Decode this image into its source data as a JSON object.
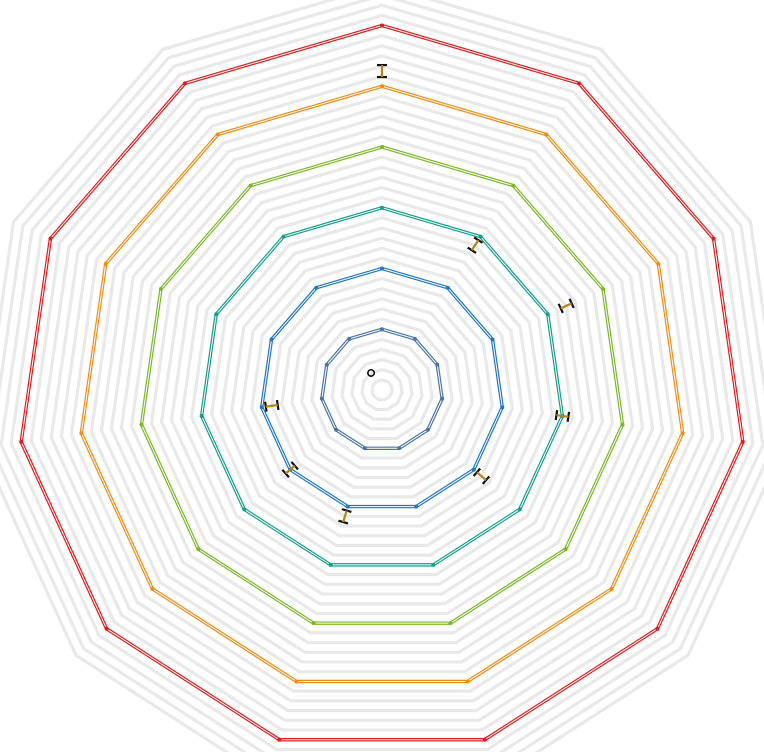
{
  "chart_data": {
    "type": "radar",
    "title": "",
    "axes_count": 11,
    "grid": true,
    "grid_levels": 40,
    "radial_range": [
      0,
      40
    ],
    "series": [
      {
        "color": "#4a76a8",
        "value": 6,
        "marker": "O",
        "marker_color": "#111111"
      },
      {
        "color": "#1f78c8",
        "value": 12,
        "marker": "H",
        "marker_color": "#b8860b"
      },
      {
        "color": "#12a08c",
        "value": 18,
        "marker": "H",
        "marker_color": "#b8860b"
      },
      {
        "color": "#7ab828",
        "value": 24,
        "marker": "H",
        "marker_color": "#b8860b"
      },
      {
        "color": "#f08c14",
        "value": 30,
        "marker": "I",
        "marker_color": "#b8860b"
      },
      {
        "color": "#e21b1b",
        "value": 36,
        "marker": "",
        "marker_color": "#b8860b"
      }
    ],
    "markers": [
      {
        "label": "I",
        "color": "#b8860b",
        "axis": 0,
        "value": 31.5
      },
      {
        "label": "H",
        "color": "#b8860b",
        "axis": 1,
        "value": 17
      },
      {
        "label": "H",
        "color": "#b8860b",
        "axis": 2,
        "value": 20
      },
      {
        "label": "H",
        "color": "#b8860b",
        "axis": 3,
        "value": 18
      },
      {
        "label": "H",
        "color": "#b8860b",
        "axis": 4,
        "value": 13
      },
      {
        "label": "H",
        "color": "#b8860b",
        "axis": 6,
        "value": 13
      },
      {
        "label": "H",
        "color": "#b8860b",
        "axis": 7,
        "value": 12
      },
      {
        "label": "H",
        "color": "#b8860b",
        "axis": 8,
        "value": 11
      },
      {
        "label": "O",
        "color": "#111111",
        "axis": 10,
        "value": 2
      }
    ]
  }
}
